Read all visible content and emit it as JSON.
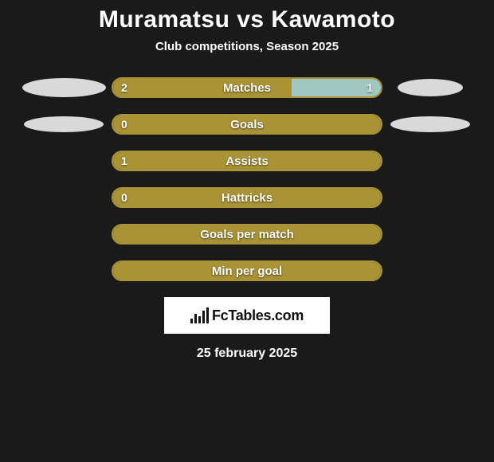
{
  "title": "Muramatsu vs Kawamoto",
  "subtitle": "Club competitions, Season 2025",
  "date": "25 february 2025",
  "logo_text": "FcTables.com",
  "colors": {
    "background": "#1a1a1a",
    "bar_border": "#a99336",
    "fill_left": "#a99336",
    "fill_right": "#a0c8c0",
    "ellipse": "#d9d9d9",
    "text": "#ffffff",
    "logo_bg": "#ffffff",
    "logo_fg": "#111111"
  },
  "ellipses": {
    "row0_left": {
      "w": 105,
      "h": 24
    },
    "row0_right": {
      "w": 82,
      "h": 22
    },
    "row1_left": {
      "w": 100,
      "h": 20
    },
    "row1_right": {
      "w": 100,
      "h": 20
    }
  },
  "stats": [
    {
      "label": "Matches",
      "left_val": "2",
      "right_val": "1",
      "left_pct": 66.7,
      "right_pct": 33.3,
      "show_left": true,
      "show_right": true
    },
    {
      "label": "Goals",
      "left_val": "0",
      "right_val": "",
      "left_pct": 100,
      "right_pct": 0,
      "show_left": true,
      "show_right": false
    },
    {
      "label": "Assists",
      "left_val": "1",
      "right_val": "",
      "left_pct": 100,
      "right_pct": 0,
      "show_left": true,
      "show_right": false
    },
    {
      "label": "Hattricks",
      "left_val": "0",
      "right_val": "",
      "left_pct": 100,
      "right_pct": 0,
      "show_left": true,
      "show_right": false
    },
    {
      "label": "Goals per match",
      "left_val": "",
      "right_val": "",
      "left_pct": 100,
      "right_pct": 0,
      "show_left": false,
      "show_right": false
    },
    {
      "label": "Min per goal",
      "left_val": "",
      "right_val": "",
      "left_pct": 100,
      "right_pct": 0,
      "show_left": false,
      "show_right": false
    }
  ]
}
